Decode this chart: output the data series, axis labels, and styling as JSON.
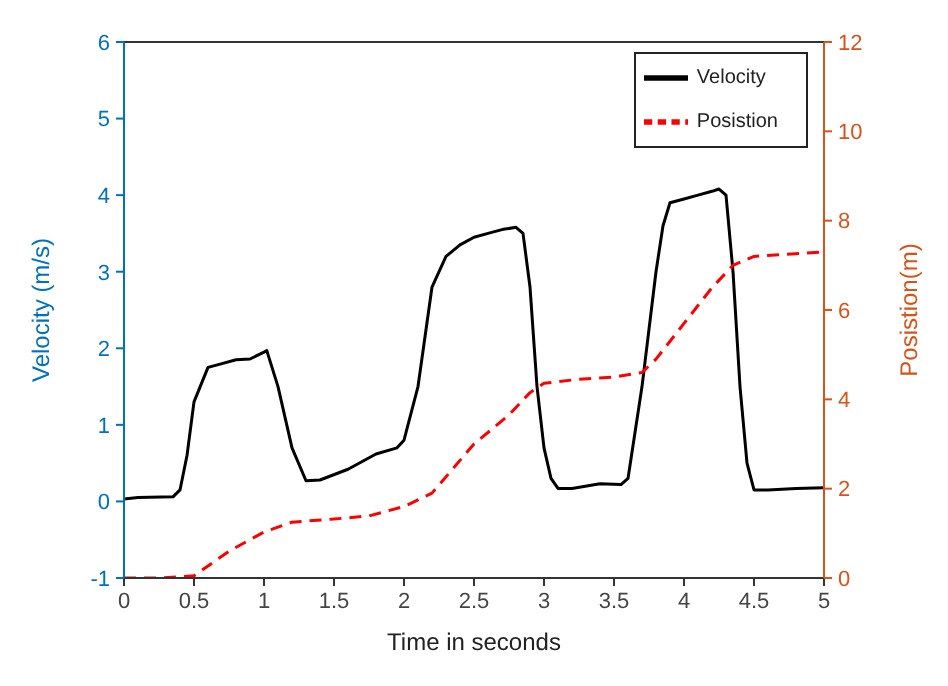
{
  "chart_data": {
    "type": "line",
    "xlabel": "Time in seconds",
    "ylabel": "Velocity (m/s)",
    "y2label": "Posistion(m)",
    "xlim": [
      0,
      5
    ],
    "xticks": [
      0,
      0.5,
      1,
      1.5,
      2,
      2.5,
      3,
      3.5,
      4,
      4.5,
      5
    ],
    "ylim": [
      -1,
      6
    ],
    "yticks": [
      -1,
      0,
      1,
      2,
      3,
      4,
      5,
      6
    ],
    "y2lim": [
      0,
      12
    ],
    "y2ticks": [
      0,
      2,
      4,
      6,
      8,
      10,
      12
    ],
    "legend": "top right",
    "grid": false,
    "marker": "none",
    "series": [
      {
        "name": "Velocity",
        "color": "#000000",
        "line_style": "solid",
        "x": [
          0,
          0.1,
          0.35,
          0.4,
          0.45,
          0.5,
          0.6,
          0.7,
          0.8,
          0.9,
          1.0,
          1.02,
          1.1,
          1.2,
          1.3,
          1.4,
          1.6,
          1.8,
          1.95,
          2.0,
          2.1,
          2.2,
          2.3,
          2.4,
          2.5,
          2.6,
          2.7,
          2.8,
          2.85,
          2.9,
          2.95,
          3.0,
          3.05,
          3.1,
          3.2,
          3.4,
          3.55,
          3.6,
          3.7,
          3.8,
          3.85,
          3.9,
          4.0,
          4.1,
          4.2,
          4.25,
          4.3,
          4.35,
          4.4,
          4.45,
          4.5,
          4.6,
          4.8,
          5.0
        ],
        "values": [
          0.03,
          0.05,
          0.06,
          0.15,
          0.6,
          1.3,
          1.75,
          1.8,
          1.85,
          1.86,
          1.95,
          1.97,
          1.5,
          0.7,
          0.27,
          0.28,
          0.42,
          0.62,
          0.7,
          0.8,
          1.5,
          2.8,
          3.2,
          3.35,
          3.45,
          3.5,
          3.55,
          3.58,
          3.5,
          2.8,
          1.5,
          0.7,
          0.3,
          0.17,
          0.17,
          0.23,
          0.22,
          0.3,
          1.5,
          3.0,
          3.6,
          3.9,
          3.95,
          4.0,
          4.05,
          4.08,
          4.0,
          3.0,
          1.5,
          0.5,
          0.15,
          0.15,
          0.17,
          0.18
        ]
      },
      {
        "name": "Posistion",
        "color": "#ff0000",
        "line_style": "dashed",
        "axis": "y2",
        "x": [
          0,
          0.25,
          0.5,
          0.75,
          1.0,
          1.2,
          1.5,
          1.75,
          2.0,
          2.2,
          2.5,
          2.75,
          2.9,
          3.0,
          3.25,
          3.5,
          3.7,
          3.8,
          4.0,
          4.2,
          4.35,
          4.5,
          5.0
        ],
        "values": [
          0,
          0,
          0.05,
          0.6,
          1.03,
          1.25,
          1.32,
          1.39,
          1.6,
          1.9,
          3.0,
          3.65,
          4.15,
          4.36,
          4.45,
          4.5,
          4.6,
          4.9,
          5.7,
          6.5,
          7.0,
          7.2,
          7.3
        ]
      }
    ]
  }
}
